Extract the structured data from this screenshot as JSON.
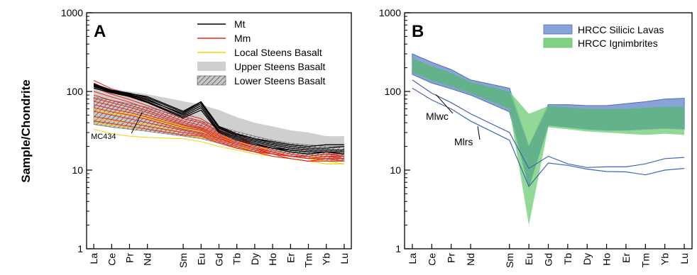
{
  "figure": {
    "ylabel": "Sample/Chondrite"
  },
  "chart_data": [
    {
      "type": "line",
      "panel": "A",
      "ylabel": "Sample/Chondrite",
      "yscale": "log",
      "ylim": [
        1,
        1000
      ],
      "yticks": [
        "1",
        "10",
        "100",
        "1000"
      ],
      "categories": [
        "La",
        "Ce",
        "Pr",
        "Nd",
        "Sm",
        "Eu",
        "Gd",
        "Tb",
        "Dy",
        "Ho",
        "Er",
        "Tm",
        "Yb",
        "Lu"
      ],
      "x_positions": [
        1,
        2,
        3,
        4,
        6,
        7,
        8,
        9,
        10,
        11,
        12,
        13,
        14,
        15
      ],
      "legend": [
        {
          "label": "Mt",
          "color": "#000000",
          "kind": "line"
        },
        {
          "label": "Mm",
          "color": "#e8261f",
          "kind": "line"
        },
        {
          "label": "Local Steens Basalt",
          "color": "#f2d40a",
          "kind": "line"
        },
        {
          "label": "Upper Steens Basalt",
          "color": "#cfcfcf",
          "kind": "fill"
        },
        {
          "label": "Lower Steens Basalt",
          "color": "#7a7a7a",
          "kind": "hatch"
        }
      ],
      "legend_position": "top-right",
      "annotations": [
        {
          "text": "MC434",
          "at": [
            "Ce",
            26
          ]
        }
      ],
      "upper_steens_band": {
        "upper": [
          120,
          108,
          100,
          92,
          75,
          68,
          58,
          47,
          40,
          36,
          32,
          30,
          27,
          27
        ],
        "lower": [
          58,
          52,
          48,
          44,
          36,
          32,
          28,
          24,
          22,
          20,
          19,
          18,
          17,
          17
        ]
      },
      "lower_steens_band": {
        "upper": [
          85,
          77,
          70,
          63,
          48,
          42,
          36,
          31,
          27,
          24,
          22,
          21,
          20,
          20
        ],
        "lower": [
          38,
          35,
          33,
          31,
          27,
          25,
          22,
          19,
          17,
          16,
          15,
          14,
          13,
          13
        ]
      },
      "series": [
        {
          "group": "Mt",
          "values": [
            122,
            103,
            92,
            80,
            50,
            66,
            32,
            26,
            23,
            20,
            18,
            17,
            17,
            17
          ]
        },
        {
          "group": "Mt",
          "values": [
            118,
            100,
            90,
            77,
            52,
            70,
            34,
            27,
            24,
            21,
            19,
            18,
            18,
            18
          ]
        },
        {
          "group": "Mt",
          "values": [
            125,
            104,
            95,
            83,
            54,
            73,
            35,
            28,
            25,
            22,
            20,
            19,
            19,
            20
          ]
        },
        {
          "group": "Mt",
          "values": [
            115,
            98,
            88,
            74,
            48,
            62,
            31,
            25,
            22,
            19,
            18,
            17,
            17,
            17
          ]
        },
        {
          "group": "Mt",
          "values": [
            120,
            102,
            94,
            86,
            56,
            74,
            36,
            29,
            25,
            23,
            21,
            20,
            21,
            21
          ]
        },
        {
          "group": "Mt",
          "values": [
            110,
            96,
            86,
            72,
            46,
            58,
            30,
            24,
            21,
            19,
            17,
            16,
            17,
            16
          ]
        },
        {
          "group": "Mm",
          "values": [
            138,
            108,
            92,
            78,
            52,
            45,
            33,
            26,
            22,
            19,
            17,
            16,
            17,
            16
          ]
        },
        {
          "group": "Mm",
          "values": [
            128,
            100,
            85,
            72,
            48,
            42,
            31,
            25,
            21,
            18,
            16,
            15,
            16,
            15
          ]
        },
        {
          "group": "Mm",
          "values": [
            112,
            92,
            79,
            66,
            45,
            40,
            30,
            24,
            20,
            17,
            15,
            14,
            15,
            14
          ]
        },
        {
          "group": "Mm",
          "values": [
            100,
            85,
            73,
            61,
            42,
            37,
            29,
            23,
            19,
            16,
            14,
            13,
            14,
            13
          ]
        },
        {
          "group": "Mm",
          "values": [
            90,
            77,
            67,
            57,
            40,
            35,
            28,
            22,
            19,
            16,
            15,
            14,
            15,
            15
          ]
        },
        {
          "group": "Mm",
          "values": [
            82,
            72,
            63,
            54,
            38,
            34,
            27,
            22,
            19,
            17,
            15,
            15,
            16,
            15
          ]
        },
        {
          "group": "Mm",
          "values": [
            75,
            66,
            58,
            50,
            37,
            33,
            26,
            21,
            18,
            16,
            15,
            14,
            15,
            14
          ]
        },
        {
          "group": "Mm",
          "values": [
            68,
            60,
            54,
            47,
            35,
            32,
            25,
            21,
            18,
            16,
            15,
            14,
            14,
            14
          ]
        },
        {
          "group": "Mm",
          "values": [
            62,
            55,
            50,
            44,
            33,
            30,
            25,
            21,
            18,
            16,
            15,
            14,
            15,
            15
          ]
        },
        {
          "group": "Mm",
          "values": [
            56,
            50,
            45,
            40,
            32,
            29,
            24,
            20,
            17,
            15,
            14,
            13,
            13,
            13
          ]
        },
        {
          "group": "Mm",
          "values": [
            48,
            44,
            40,
            36,
            30,
            28,
            23,
            19,
            17,
            15,
            14,
            13,
            14,
            14
          ]
        },
        {
          "group": "Mm",
          "values": [
            42,
            39,
            36,
            33,
            28,
            27,
            22,
            19,
            17,
            16,
            15,
            15,
            16,
            16
          ]
        },
        {
          "group": "Local Steens Basalt",
          "values": [
            60,
            55,
            52,
            48,
            36,
            33,
            28,
            23,
            20,
            18,
            16,
            15,
            14,
            14
          ]
        },
        {
          "group": "Local Steens Basalt",
          "values": [
            56,
            52,
            50,
            46,
            34,
            31,
            26,
            22,
            19,
            17,
            15,
            14,
            13,
            13
          ]
        },
        {
          "group": "Local Steens Basalt",
          "values": [
            45,
            42,
            40,
            38,
            30,
            28,
            24,
            20,
            18,
            16,
            14,
            13,
            13,
            12
          ]
        },
        {
          "group": "Local Steens Basalt",
          "values": [
            40,
            37,
            35,
            33,
            28,
            26,
            23,
            19,
            17,
            15,
            14,
            13,
            12,
            12
          ]
        },
        {
          "group": "Local Steens Basalt",
          "values": [
            33,
            29,
            27,
            26,
            25,
            23,
            20,
            18,
            16,
            15,
            14,
            13,
            12,
            12
          ]
        }
      ]
    },
    {
      "type": "area",
      "panel": "B",
      "yscale": "log",
      "ylim": [
        1,
        1000
      ],
      "yticks": [
        "1",
        "10",
        "100",
        "1000"
      ],
      "categories": [
        "La",
        "Ce",
        "Pr",
        "Nd",
        "Sm",
        "Eu",
        "Gd",
        "Tb",
        "Dy",
        "Ho",
        "Er",
        "Tm",
        "Yb",
        "Lu"
      ],
      "x_positions": [
        1,
        2,
        3,
        4,
        6,
        7,
        8,
        9,
        10,
        11,
        12,
        13,
        14,
        15
      ],
      "legend": [
        {
          "label": "HRCC Silicic Lavas",
          "color": "#8aa3d6"
        },
        {
          "label": "HRCC Ignimbrites",
          "color": "#7fd185"
        }
      ],
      "legend_position": "top-right",
      "silicic_lavas_band": {
        "upper": [
          300,
          235,
          190,
          140,
          110,
          20,
          68,
          68,
          66,
          66,
          70,
          74,
          80,
          82
        ],
        "lower": [
          165,
          128,
          108,
          90,
          55,
          6,
          37,
          35,
          33,
          32,
          32,
          33,
          34,
          33
        ]
      },
      "ignimbrites_band": {
        "upper": [
          265,
          210,
          172,
          132,
          100,
          52,
          65,
          63,
          60,
          60,
          60,
          62,
          64,
          64
        ],
        "lower": [
          175,
          138,
          115,
          95,
          60,
          2,
          35,
          33,
          31,
          30,
          29,
          28,
          29,
          28
        ]
      },
      "series": [
        {
          "name": "Mlwc",
          "values": [
            140,
            95,
            72,
            52,
            30,
            10.5,
            15,
            12,
            10.8,
            11,
            11,
            12,
            14,
            14.5
          ]
        },
        {
          "name": "Mlrs",
          "values": [
            110,
            78,
            60,
            42,
            24,
            6.2,
            12.3,
            11.5,
            10.3,
            9.6,
            9.5,
            8.7,
            10,
            10.5
          ]
        }
      ],
      "annotations": [
        {
          "text": "Mlwc",
          "series": "Mlwc"
        },
        {
          "text": "Mlrs",
          "series": "Mlrs"
        }
      ]
    }
  ]
}
